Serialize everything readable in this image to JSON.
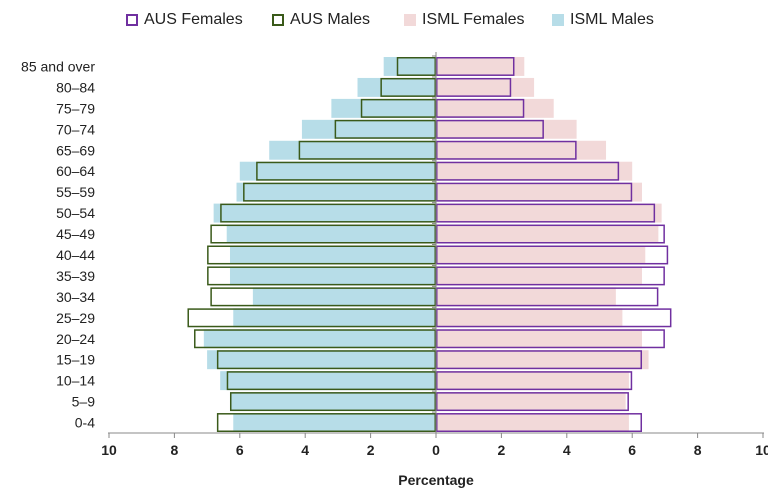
{
  "chart_data": {
    "type": "bar",
    "orientation": "horizontal-population-pyramid",
    "categories": [
      "0-4",
      "5–9",
      "10–14",
      "15–19",
      "20–24",
      "25–29",
      "30–34",
      "35–39",
      "40–44",
      "45–49",
      "50–54",
      "55–59",
      "60–64",
      "65–69",
      "70–74",
      "75–79",
      "80–84",
      "85 and over"
    ],
    "series": [
      {
        "name": "AUS Females",
        "side": "right",
        "style": "outline",
        "color": "#7030a0",
        "values": [
          6.3,
          5.9,
          6.0,
          6.3,
          7.0,
          7.2,
          6.8,
          7.0,
          7.1,
          7.0,
          6.7,
          6.0,
          5.6,
          4.3,
          3.3,
          2.7,
          2.3,
          2.4
        ]
      },
      {
        "name": "AUS Males",
        "side": "left",
        "style": "outline",
        "color": "#3a5a1a",
        "values": [
          6.7,
          6.3,
          6.4,
          6.7,
          7.4,
          7.6,
          6.9,
          7.0,
          7.0,
          6.9,
          6.6,
          5.9,
          5.5,
          4.2,
          3.1,
          2.3,
          1.7,
          1.2
        ]
      },
      {
        "name": "ISML Females",
        "side": "right",
        "style": "fill",
        "color": "#f2d9d9",
        "values": [
          5.9,
          5.8,
          5.9,
          6.5,
          6.3,
          5.7,
          5.5,
          6.3,
          6.4,
          6.8,
          6.9,
          6.3,
          6.0,
          5.2,
          4.3,
          3.6,
          3.0,
          2.7
        ]
      },
      {
        "name": "ISML Males",
        "side": "left",
        "style": "fill",
        "color": "#b7dde8",
        "values": [
          6.2,
          6.3,
          6.6,
          7.0,
          7.1,
          6.2,
          5.6,
          6.3,
          6.3,
          6.4,
          6.8,
          6.1,
          6.0,
          5.1,
          4.1,
          3.2,
          2.4,
          1.6
        ]
      }
    ],
    "x_ticks": [
      "10",
      "8",
      "6",
      "4",
      "2",
      "0",
      "2",
      "4",
      "6",
      "8",
      "10"
    ],
    "xlim": [
      -10,
      10
    ],
    "xlabel": "Percentage",
    "legend": "top",
    "grid": false
  }
}
